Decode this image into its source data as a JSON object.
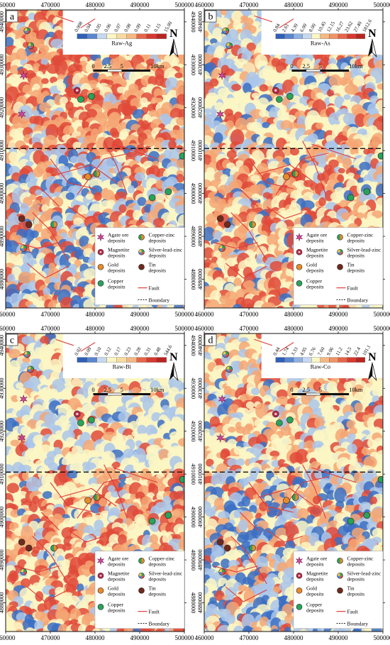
{
  "x_ticks": [
    "460000",
    "470000",
    "480000",
    "490000",
    "500000"
  ],
  "y_ticks_top": [
    "4940000",
    "4930000",
    "4920000",
    "4910000",
    "4900000",
    "4890000",
    "4880000"
  ],
  "north_label": "N",
  "scale_bar": {
    "labels": [
      "0",
      "2.5",
      "5",
      "10km"
    ]
  },
  "legend_items": [
    {
      "label": "Agate ore deposits",
      "symbol": "star",
      "color": "#d04a9c"
    },
    {
      "label": "Copper-zinc deposits",
      "symbol": "pie-green-orange",
      "color": "#3aa152"
    },
    {
      "label": "Magnetite deposits",
      "symbol": "circle-ring",
      "color": "#c0284a"
    },
    {
      "label": "Silver-lead-zinc deposits",
      "symbol": "pie-multi",
      "color": "#4a90d9"
    },
    {
      "label": "Gold deposits",
      "symbol": "circle",
      "color": "#e88a2a"
    },
    {
      "label": "Tin deposits",
      "symbol": "circle",
      "color": "#6e2a1e"
    },
    {
      "label": "Copper deposits",
      "symbol": "circle",
      "color": "#29a35a"
    },
    {
      "label": "Fault",
      "symbol": "line",
      "color": "#e03a3a"
    },
    {
      "label": "Boundary",
      "symbol": "dash",
      "color": "#222222"
    }
  ],
  "panels": [
    {
      "letter": "a",
      "colorbar_title": "Raw-Ag",
      "colorbar_ticks": [
        "0.008",
        "0.04",
        "0.05",
        "0.06",
        "0.07",
        "0.08",
        "0.09",
        "0.11",
        "0.15",
        "15.00"
      ]
    },
    {
      "letter": "b",
      "colorbar_title": "Raw-As",
      "colorbar_ticks": [
        "0.84",
        "2.61",
        "4.30",
        "6.00",
        "8.00",
        "10.45",
        "12.15",
        "16.27",
        "23.62",
        "27.40",
        "1812.6"
      ]
    },
    {
      "letter": "c",
      "colorbar_title": "Raw-Bi",
      "colorbar_ticks": [
        "0.02",
        "0.09",
        "0.10",
        "0.12",
        "0.17",
        "0.23",
        "0.28",
        "0.31",
        "0.48",
        "544.6"
      ]
    },
    {
      "letter": "d",
      "colorbar_title": "Raw-Co",
      "colorbar_ticks": [
        "0.44",
        "1.74",
        "3.33",
        "4.95",
        "6.76",
        "7.60",
        "9.06",
        "11.2",
        "14.5",
        "22.4",
        "101.1"
      ]
    }
  ],
  "colors": {
    "low": "#3b6fc4",
    "midlow": "#aac6ea",
    "mid": "#fbf6c4",
    "midhigh": "#f4a674",
    "high": "#e04a3a"
  }
}
